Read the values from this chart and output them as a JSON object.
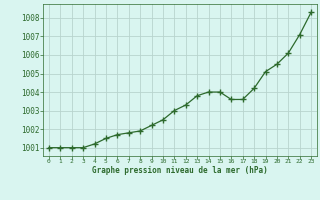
{
  "x": [
    0,
    1,
    2,
    3,
    4,
    5,
    6,
    7,
    8,
    9,
    10,
    11,
    12,
    13,
    14,
    15,
    16,
    17,
    18,
    19,
    20,
    21,
    22,
    23
  ],
  "y": [
    1001.0,
    1001.0,
    1001.0,
    1001.0,
    1001.2,
    1001.5,
    1001.7,
    1001.8,
    1001.9,
    1002.2,
    1002.5,
    1003.0,
    1003.3,
    1003.8,
    1004.0,
    1004.0,
    1003.6,
    1003.6,
    1004.2,
    1005.1,
    1005.5,
    1006.1,
    1007.1,
    1008.3
  ],
  "line_color": "#2d6a2d",
  "marker_color": "#2d6a2d",
  "bg_color": "#d9f5f0",
  "grid_color": "#b8d4ce",
  "xlabel": "Graphe pression niveau de la mer (hPa)",
  "xlabel_color": "#2d6a2d",
  "ytick_color": "#2d6a2d",
  "xtick_color": "#2d6a2d",
  "ylim": [
    1000.55,
    1008.75
  ],
  "yticks": [
    1001,
    1002,
    1003,
    1004,
    1005,
    1006,
    1007,
    1008
  ],
  "xlim": [
    -0.5,
    23.5
  ]
}
